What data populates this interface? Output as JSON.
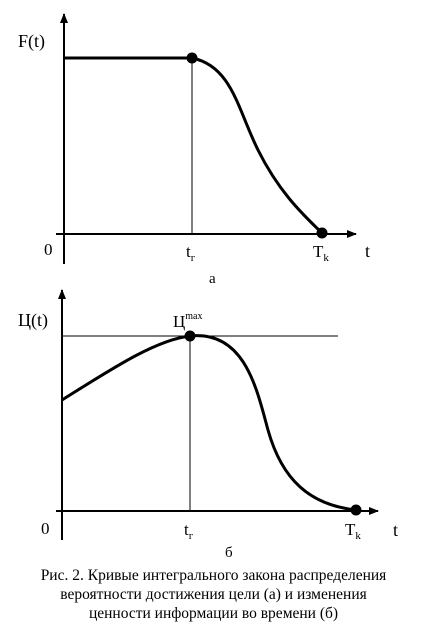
{
  "graph_a": {
    "y_label": "F(t)",
    "origin": "0",
    "x_label": "t",
    "tick_tr_main": "t",
    "tick_tr_sub": "г",
    "tick_tk_main": "T",
    "tick_tk_sub": "k",
    "panel_label": "а"
  },
  "graph_b": {
    "y_label": "Ц(t)",
    "origin": "0",
    "x_label": "t",
    "peak_main": "Ц",
    "peak_sup": "max",
    "tick_tr_main": "t",
    "tick_tr_sub": "г",
    "tick_tk_main": "T",
    "tick_tk_sub": "k",
    "panel_label": "б"
  },
  "caption": {
    "line1": "Рис. 2. Кривые интегрального закона распределения",
    "line2": "вероятности достижения цели (а) и изменения",
    "line3": "ценности информации во времени (б)"
  }
}
